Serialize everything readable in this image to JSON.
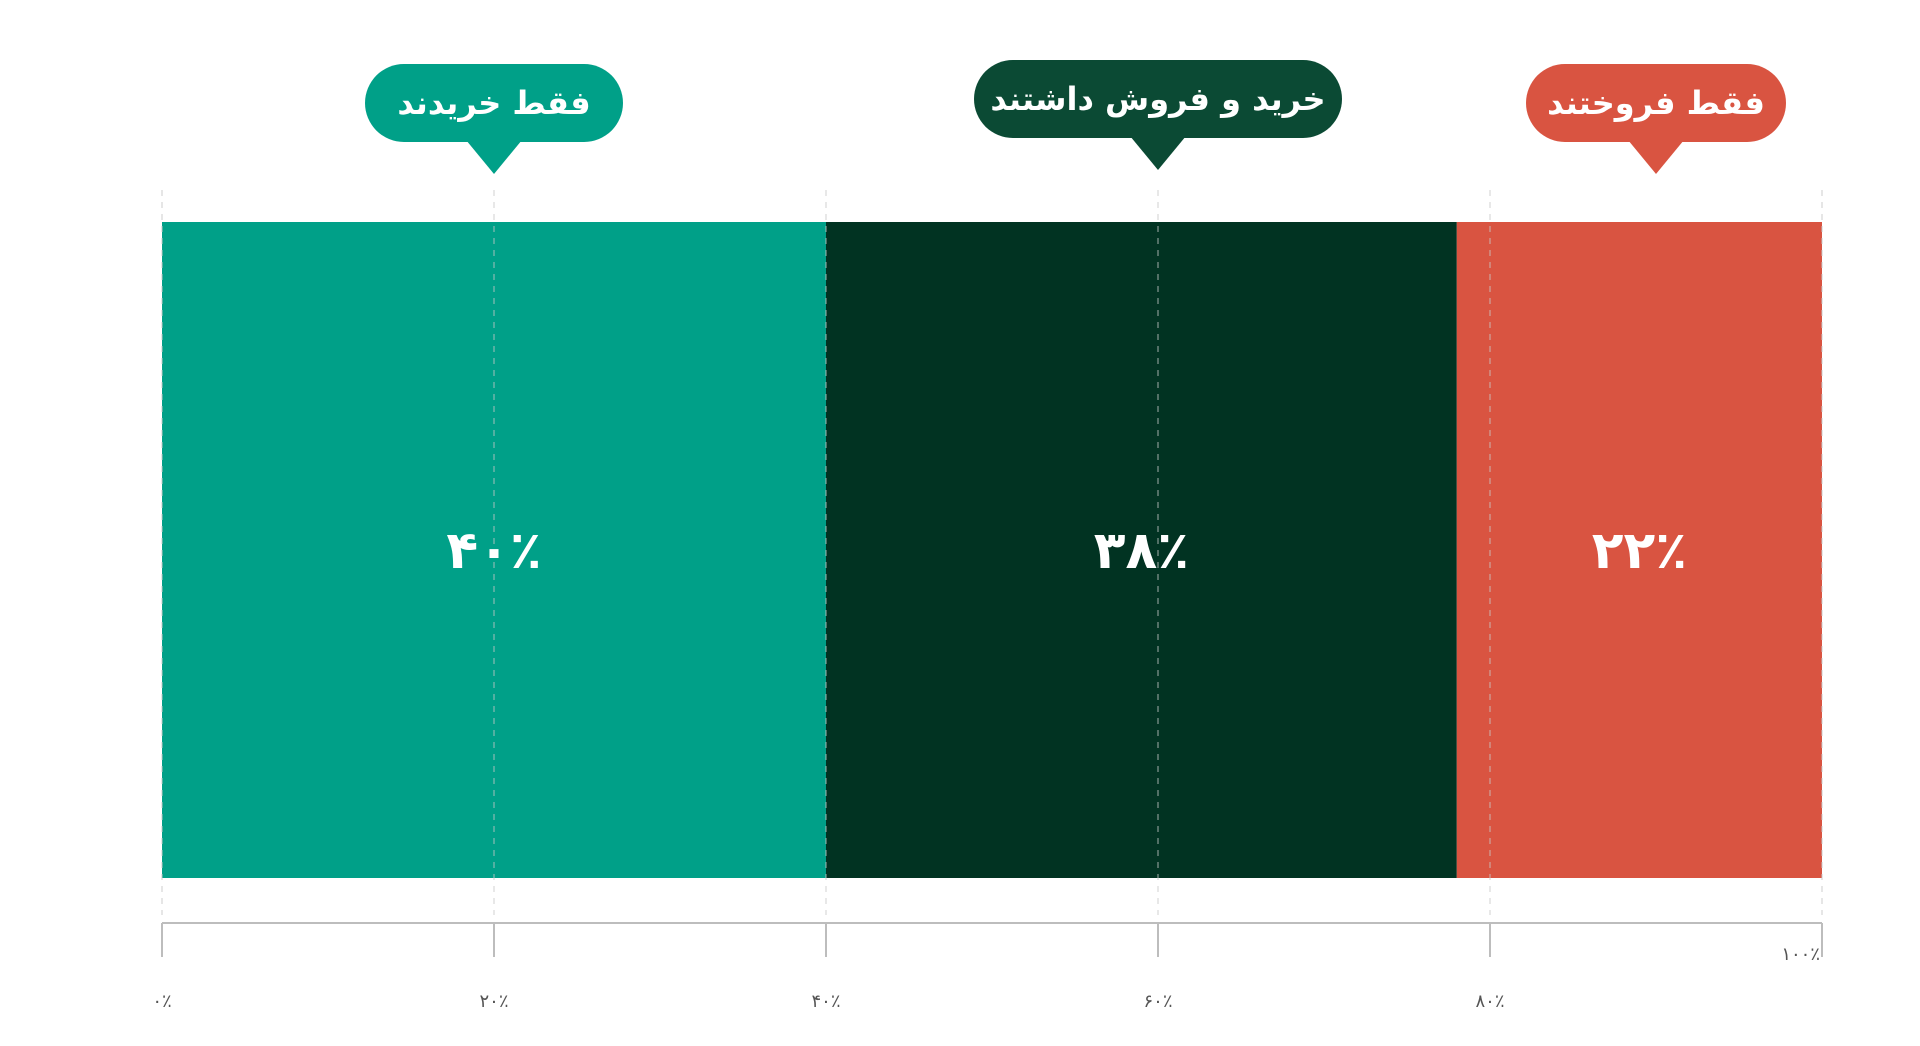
{
  "chart_data": {
    "type": "bar",
    "orientation": "horizontal-stacked",
    "segments": [
      {
        "label": "فقط خریدند",
        "value": 40,
        "value_label": "۴۰٪",
        "color": "#00a088"
      },
      {
        "label": "خرید و فروش داشتند",
        "value": 38,
        "value_label": "۳۸٪",
        "color": "#013322"
      },
      {
        "label": "فقط فروختند",
        "value": 22,
        "value_label": "۲۲٪",
        "color": "#d95441"
      }
    ],
    "callout_colors": [
      "#00a088",
      "#0b4a34",
      "#d95441"
    ],
    "xlim": [
      0,
      100
    ],
    "ticks": [
      {
        "value": 0,
        "label": "۰٪"
      },
      {
        "value": 20,
        "label": "۲۰٪"
      },
      {
        "value": 40,
        "label": "۴۰٪"
      },
      {
        "value": 60,
        "label": "۶۰٪"
      },
      {
        "value": 80,
        "label": "۸۰٪"
      },
      {
        "value": 100,
        "label": "۱۰۰٪"
      }
    ],
    "grid": "dashed-vertical"
  }
}
